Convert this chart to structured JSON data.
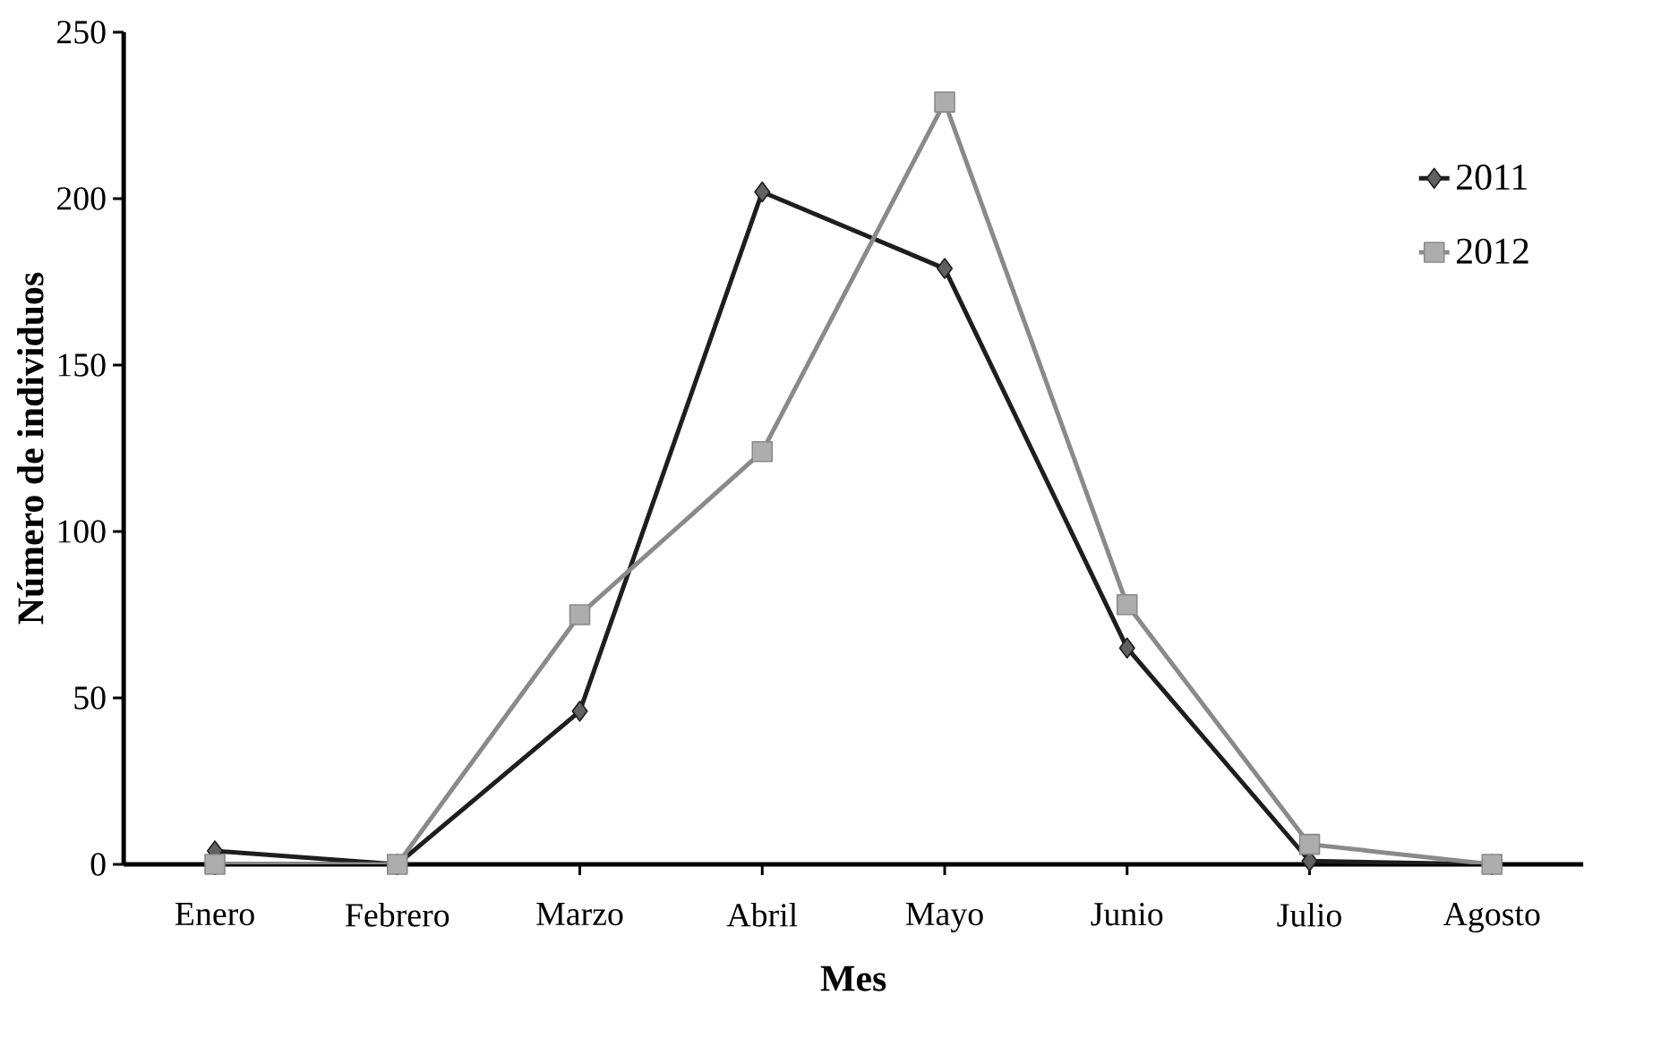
{
  "chart_data": {
    "type": "line",
    "xlabel": "Mes",
    "ylabel": "Número de individuos",
    "categories": [
      "Enero",
      "Febrero",
      "Marzo",
      "Abril",
      "Mayo",
      "Junio",
      "Julio",
      "Agosto"
    ],
    "series": [
      {
        "name": "2011",
        "color": "#1e1e1e",
        "marker": "diamond",
        "values": [
          4,
          0,
          46,
          202,
          179,
          65,
          1,
          0
        ]
      },
      {
        "name": "2012",
        "color": "#8a8a8a",
        "marker": "square",
        "values": [
          0,
          0,
          75,
          124,
          229,
          78,
          6,
          0
        ]
      }
    ],
    "ylim": [
      0,
      250
    ],
    "yticks": [
      0,
      50,
      100,
      150,
      200,
      250
    ],
    "grid": false,
    "legend": "top right",
    "line_style": "solid"
  }
}
